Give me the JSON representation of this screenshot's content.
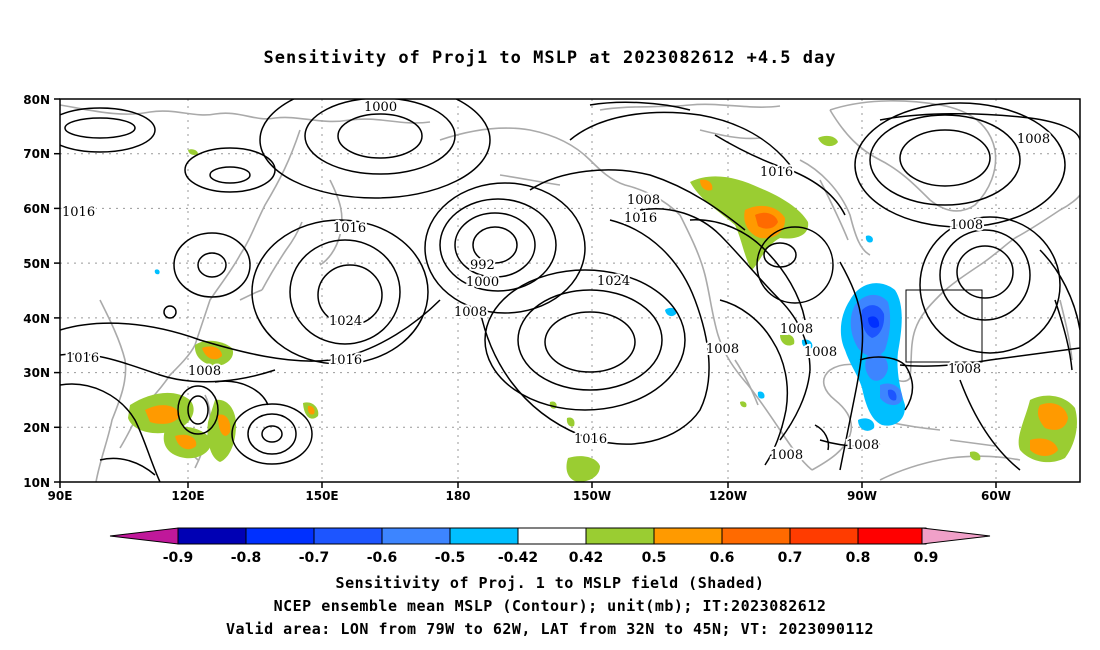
{
  "title": "Sensitivity of Proj1 to MSLP at 2023082612 +4.5 day",
  "lat_labels": [
    "80N",
    "70N",
    "60N",
    "50N",
    "40N",
    "30N",
    "20N",
    "10N"
  ],
  "lon_labels": [
    "90E",
    "120E",
    "150E",
    "180",
    "150W",
    "120W",
    "90W",
    "60W"
  ],
  "contour_labels": [
    "1000",
    "1016",
    "1016",
    "992",
    "1000",
    "1008",
    "1016",
    "1024",
    "1008",
    "1016",
    "1024",
    "1016",
    "1016",
    "1008",
    "1016",
    "1008",
    "1008",
    "1008",
    "1008",
    "1008",
    "1008",
    "1008",
    "1008",
    "1016"
  ],
  "colorbar": {
    "labels": [
      "-0.9",
      "-0.8",
      "-0.7",
      "-0.6",
      "-0.5",
      "-0.42",
      "0.42",
      "0.5",
      "0.6",
      "0.7",
      "0.8",
      "0.9"
    ],
    "colors": [
      "#0000b4",
      "#0030ff",
      "#1d55ff",
      "#3d85ff",
      "#00bfff",
      "#ffffff",
      "#9acd32",
      "#ff9a00",
      "#ff6a00",
      "#ff3c00",
      "#ff0000"
    ],
    "low_end_color": "#c0189a",
    "high_end_color": "#f0a0c8"
  },
  "captions": {
    "line1": "Sensitivity of Proj. 1 to MSLP field (Shaded)",
    "line2": "NCEP ensemble mean MSLP (Contour); unit(mb); IT:2023082612",
    "line3": "Valid area: LON from 79W to 62W, LAT from 32N to 45N; VT: 2023090112"
  }
}
